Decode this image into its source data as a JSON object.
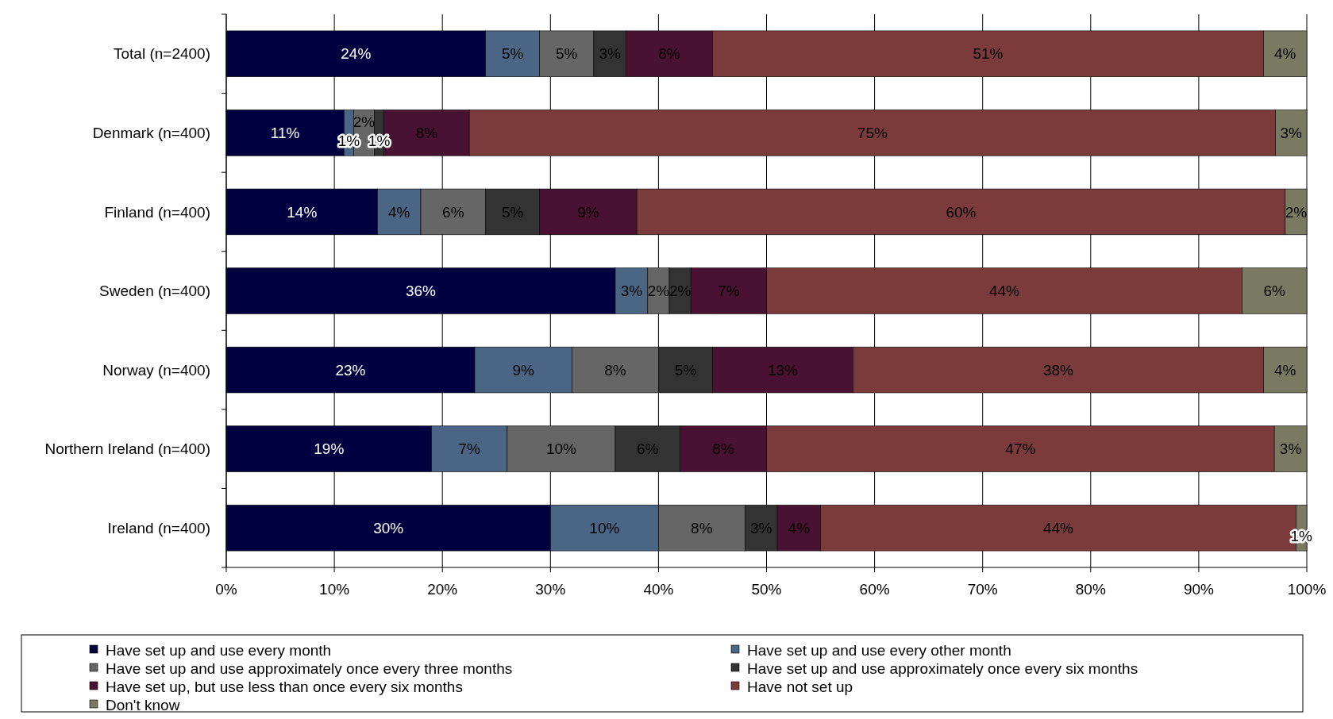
{
  "chart_data": {
    "type": "bar",
    "orientation": "horizontal",
    "stacked": true,
    "categories": [
      "Total (n=2400)",
      "Denmark (n=400)",
      "Finland (n=400)",
      "Sweden (n=400)",
      "Norway (n=400)",
      "Northern Ireland (n=400)",
      "Ireland (n=400)"
    ],
    "series": [
      {
        "name": "Have set up and use every month",
        "color": "#000040",
        "values": [
          24,
          10.9,
          14,
          36,
          23,
          19,
          30
        ],
        "value_labels": [
          "24%",
          "11%",
          "14%",
          "36%",
          "23%",
          "19%",
          "30%"
        ]
      },
      {
        "name": "Have set up and use every other month",
        "color": "#4b6584",
        "values": [
          5,
          0.9,
          4,
          3,
          9,
          7,
          10
        ],
        "value_labels": [
          "5%",
          "1%",
          "4%",
          "3%",
          "9%",
          "7%",
          "10%"
        ]
      },
      {
        "name": "Have set up and use approximately once every three months",
        "color": "#666666",
        "values": [
          5,
          1.9,
          6,
          2,
          8,
          10,
          8
        ],
        "value_labels": [
          "5%",
          "2%",
          "6%",
          "2%",
          "8%",
          "10%",
          "8%"
        ]
      },
      {
        "name": "Have set up and use approximately once every six months",
        "color": "#333333",
        "values": [
          3,
          0.9,
          5,
          2,
          5,
          6,
          3
        ],
        "value_labels": [
          "3%",
          "1%",
          "5%",
          "2%",
          "5%",
          "6%",
          "3%"
        ]
      },
      {
        "name": "Have set up, but use less than once every six months",
        "color": "#4a1232",
        "values": [
          8,
          7.9,
          9,
          7,
          13,
          8,
          4
        ],
        "value_labels": [
          "8%",
          "8%",
          "9%",
          "7%",
          "13%",
          "8%",
          "4%"
        ]
      },
      {
        "name": "Have not set up",
        "color": "#7b3b3b",
        "values": [
          51,
          74.6,
          60,
          44,
          38,
          47,
          44
        ],
        "value_labels": [
          "51%",
          "75%",
          "60%",
          "44%",
          "38%",
          "47%",
          "44%"
        ]
      },
      {
        "name": "Don't know",
        "color": "#7a7a62",
        "values": [
          4,
          2.9,
          2,
          6,
          4,
          3,
          1
        ],
        "value_labels": [
          "4%",
          "3%",
          "2%",
          "6%",
          "4%",
          "3%",
          "1%"
        ]
      }
    ],
    "xlim": [
      0,
      100
    ],
    "xticks": [
      {
        "value": 0,
        "label": "0%"
      },
      {
        "value": 10,
        "label": "10%"
      },
      {
        "value": 20,
        "label": "20%"
      },
      {
        "value": 30,
        "label": "30%"
      },
      {
        "value": 40,
        "label": "40%"
      },
      {
        "value": 50,
        "label": "50%"
      },
      {
        "value": 60,
        "label": "60%"
      },
      {
        "value": 70,
        "label": "70%"
      },
      {
        "value": 80,
        "label": "80%"
      },
      {
        "value": 90,
        "label": "90%"
      },
      {
        "value": 100,
        "label": "100%"
      }
    ],
    "grid": "x",
    "legend": "bottom"
  }
}
